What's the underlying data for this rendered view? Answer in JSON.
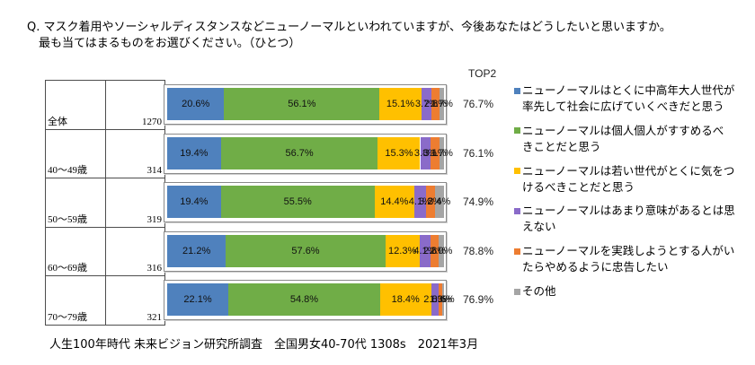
{
  "chart_data": {
    "type": "bar",
    "orientation": "horizontal",
    "stacked": true,
    "title_lines": [
      "Q. マスク着用やソーシャルディスタンスなどニューノーマルといわれていますが、今後あなたはどうしたいと思いますか。",
      "最も当てはまるものをお選びください。（ひとつ）"
    ],
    "categories": [
      "全体",
      "40～49歳",
      "50～59歳",
      "60～69歳",
      "70～79歳"
    ],
    "sample_sizes": [
      "1270",
      "314",
      "319",
      "316",
      "321"
    ],
    "xlim": [
      0,
      100
    ],
    "value_suffix": "%",
    "legend": "right",
    "series": [
      {
        "label": [
          "ニューノーマルはとくに中高年大人世代が",
          "率先して社会に広げていくべきだと思う"
        ],
        "color": "#4f81bd",
        "values": [
          20.6,
          19.4,
          19.4,
          21.2,
          22.1
        ]
      },
      {
        "label": [
          "ニューノーマルは個人個人がすすめるべ",
          "きことだと思う"
        ],
        "color": "#70ad47",
        "values": [
          56.1,
          56.7,
          55.5,
          57.6,
          54.8
        ]
      },
      {
        "label": [
          "ニューノーマルは若い世代がとくに気をつ",
          "けるべきことだと思う"
        ],
        "color": "#ffc000",
        "values": [
          15.1,
          15.3,
          14.4,
          12.3,
          18.4
        ]
      },
      {
        "label": [
          "ニューノーマルはあまり意味があるとは思",
          "えない"
        ],
        "color": "#8a6bc9",
        "values": [
          3.7,
          3.8,
          4.1,
          4.1,
          2.8
        ]
      },
      {
        "label": [
          "ニューノーマルを実践しようとする人がい",
          "たらやめるように忠告したい"
        ],
        "color": "#ed7d31",
        "values": [
          2.8,
          3.1,
          3.2,
          2.8,
          1.3
        ]
      },
      {
        "label": [
          "その他"
        ],
        "color": "#a5a5a5",
        "values": [
          1.7,
          1.7,
          3.4,
          2.0,
          0.6
        ]
      }
    ],
    "top2_label": "TOP2",
    "top2": [
      "76.7%",
      "76.1%",
      "74.9%",
      "78.8%",
      "76.9%"
    ]
  },
  "footer": "人生100年時代 未来ビジョン研究所調査　全国男女40-70代 1308s　2021年3月"
}
